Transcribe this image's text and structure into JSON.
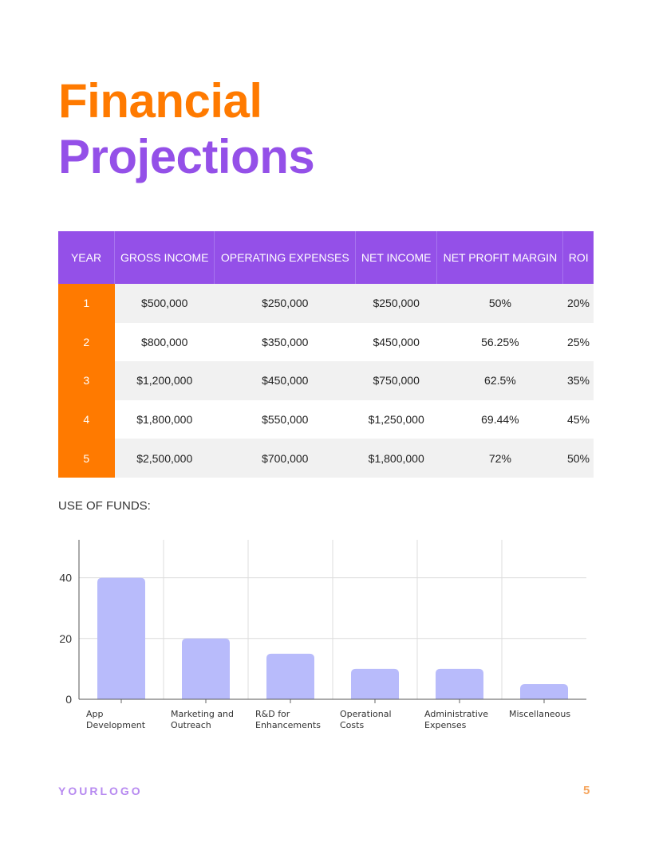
{
  "title_line1": "Financial",
  "title_line2": "Projections",
  "colors": {
    "purple": "#9450E8",
    "orange": "#FF7A00",
    "bar": "#B8BBFB"
  },
  "table": {
    "headers": [
      "YEAR",
      "GROSS INCOME",
      "OPERATING EXPENSES",
      "NET INCOME",
      "NET PROFIT MARGIN",
      "ROI"
    ],
    "rows": [
      [
        "1",
        "$500,000",
        "$250,000",
        "$250,000",
        "50%",
        "20%"
      ],
      [
        "2",
        "$800,000",
        "$350,000",
        "$450,000",
        "56.25%",
        "25%"
      ],
      [
        "3",
        "$1,200,000",
        "$450,000",
        "$750,000",
        "62.5%",
        "35%"
      ],
      [
        "4",
        "$1,800,000",
        "$550,000",
        "$1,250,000",
        "69.44%",
        "45%"
      ],
      [
        "5",
        "$2,500,000",
        "$700,000",
        "$1,800,000",
        "72%",
        "50%"
      ]
    ]
  },
  "funds_label": "USE OF FUNDS:",
  "chart_data": {
    "type": "bar",
    "categories": [
      [
        "App",
        "Development"
      ],
      [
        "Marketing and",
        "Outreach"
      ],
      [
        "R&D for",
        "Enhancements"
      ],
      [
        "Operational",
        "Costs"
      ],
      [
        "Administrative",
        "Expenses"
      ],
      [
        "Miscellaneous"
      ]
    ],
    "values": [
      40,
      20,
      15,
      10,
      10,
      5
    ],
    "yticks": [
      0,
      20,
      40
    ],
    "ylim": [
      0,
      52.5
    ],
    "grid": true,
    "bar_color": "#B8BBFB"
  },
  "footer": {
    "logo": "YOURLOGO",
    "page": "5"
  }
}
